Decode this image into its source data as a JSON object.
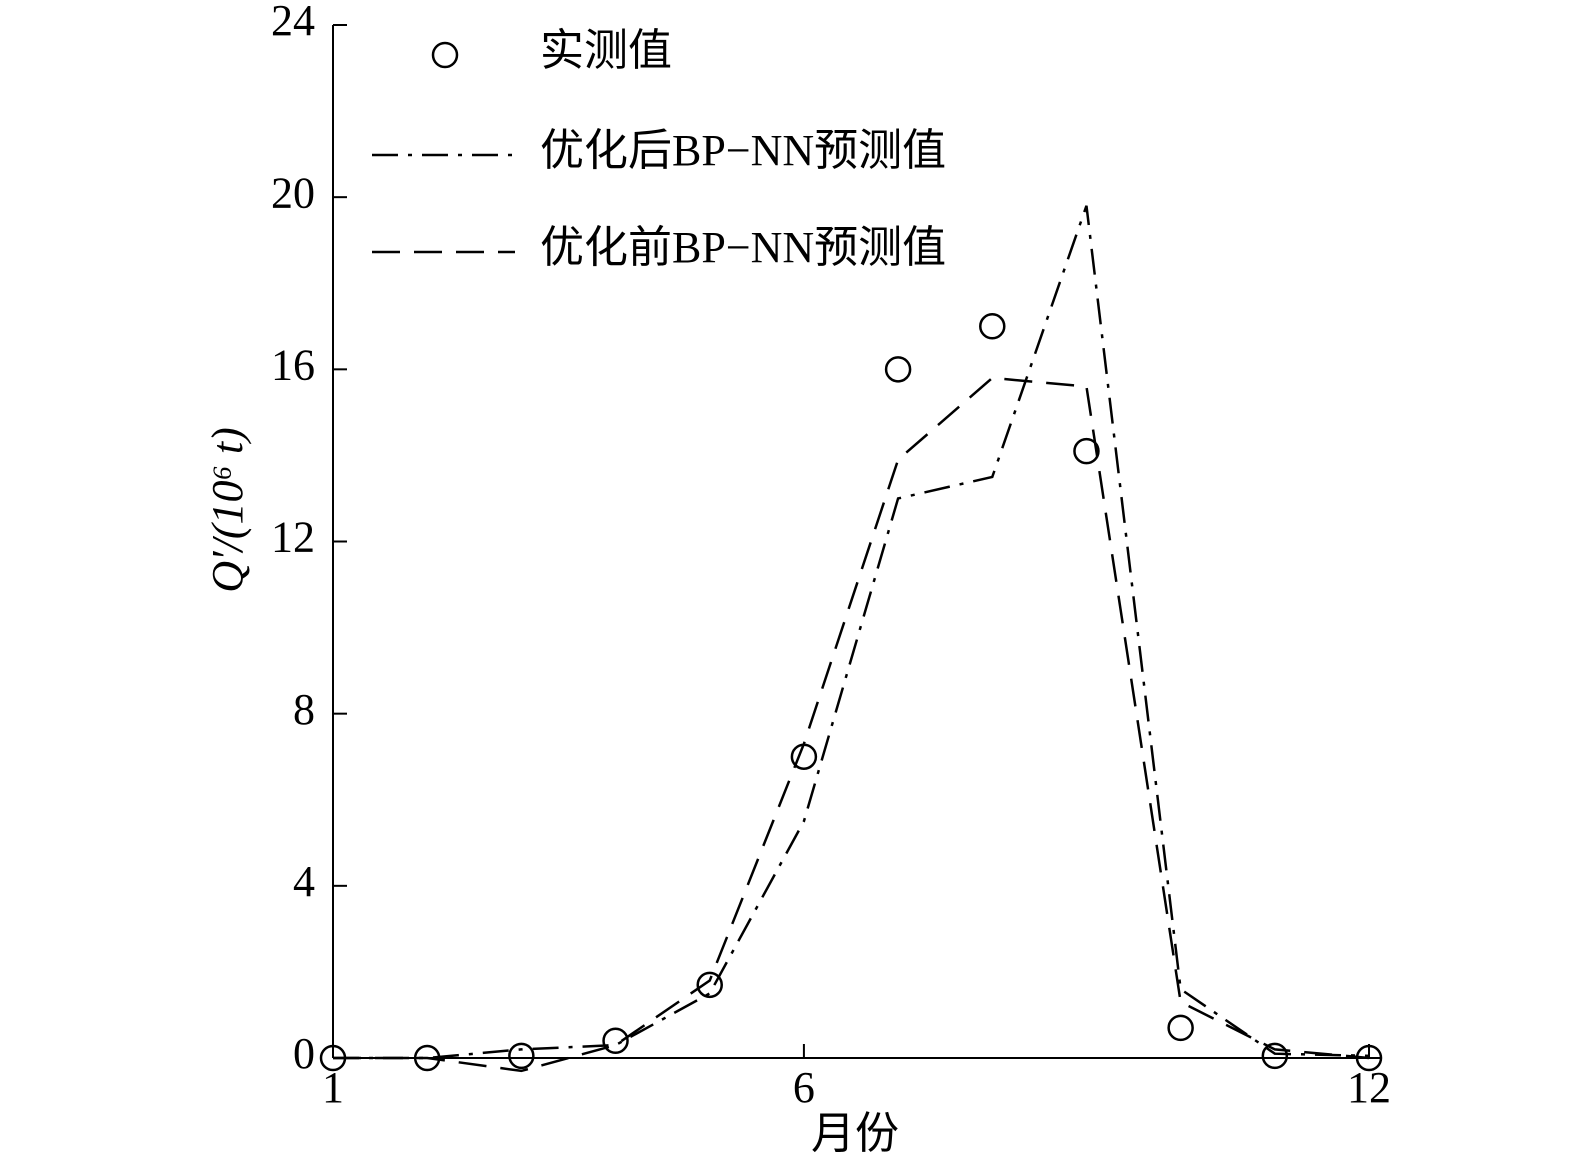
{
  "chart_data": {
    "type": "line",
    "xlabel": "月份",
    "ylabel": "Q′/(10⁶ t)",
    "x": [
      1,
      2,
      3,
      4,
      5,
      6,
      7,
      8,
      9,
      10,
      11,
      12
    ],
    "xlim": [
      1,
      12
    ],
    "xticks": [
      1,
      6,
      12
    ],
    "ylim": [
      0,
      24
    ],
    "yticks": [
      0,
      4,
      8,
      12,
      16,
      20,
      24
    ],
    "legend": "upper left",
    "series": [
      {
        "name": "实测值",
        "color": "#000000",
        "style": "markers",
        "values": [
          0,
          0,
          0.05,
          0.4,
          1.7,
          7.0,
          16.0,
          17.0,
          14.1,
          0.7,
          0.05,
          0
        ]
      },
      {
        "name": "优化后BP−NN预测值",
        "color": "#000000",
        "style": "dashdot",
        "values": [
          0,
          0,
          0.2,
          0.3,
          1.5,
          5.5,
          13.0,
          13.5,
          19.8,
          1.6,
          0.1,
          0.05
        ]
      },
      {
        "name": "优化前BP−NN预测值",
        "color": "#000000",
        "style": "dashed",
        "values": [
          0,
          0,
          -0.3,
          0.3,
          1.8,
          7.3,
          13.9,
          15.8,
          15.6,
          1.3,
          0.2,
          0
        ]
      }
    ]
  }
}
